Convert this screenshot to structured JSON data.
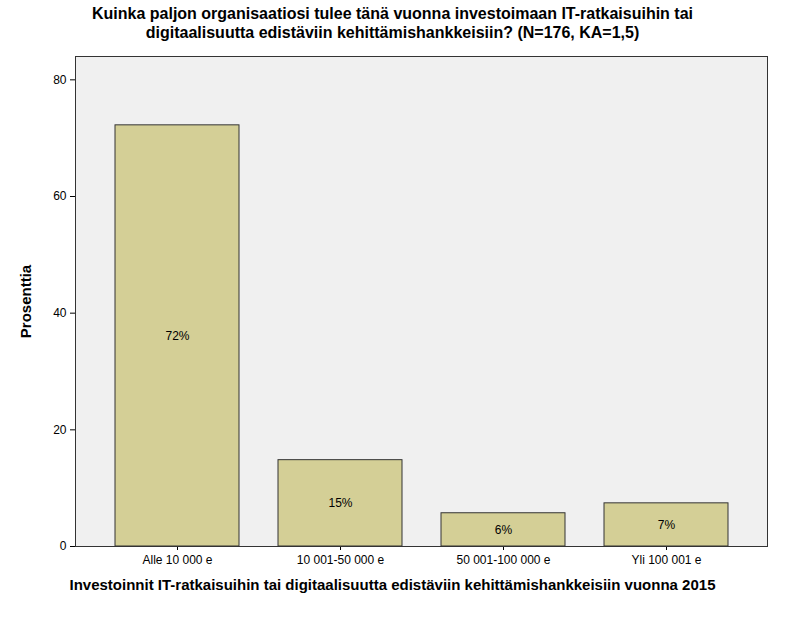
{
  "chart_data": {
    "type": "bar",
    "title": "Kuinka paljon organisaatiosi tulee tänä vuonna investoimaan IT-ratkaisuihin tai digitaalisuutta edistäviin kehittämishankkeisiin? (N=176, KA=1,5)",
    "x_label": "Investoinnit IT-ratkaisuihin tai digitaalisuutta edistäviin kehittämishankkeisiin vuonna 2015",
    "y_label": "Prosenttia",
    "categories": [
      "Alle 10 000 e",
      "10 001-50 000 e",
      "50 001-100 000 e",
      "Yli 100 001 e"
    ],
    "values": [
      72.2,
      14.8,
      5.7,
      7.4
    ],
    "value_labels": [
      "72%",
      "15%",
      "6%",
      "7%"
    ],
    "data_labels": true,
    "color": "#d4cf96",
    "ylim": [
      0,
      84
    ],
    "yticks": [
      0,
      20,
      40,
      60,
      80
    ],
    "grid": false
  }
}
